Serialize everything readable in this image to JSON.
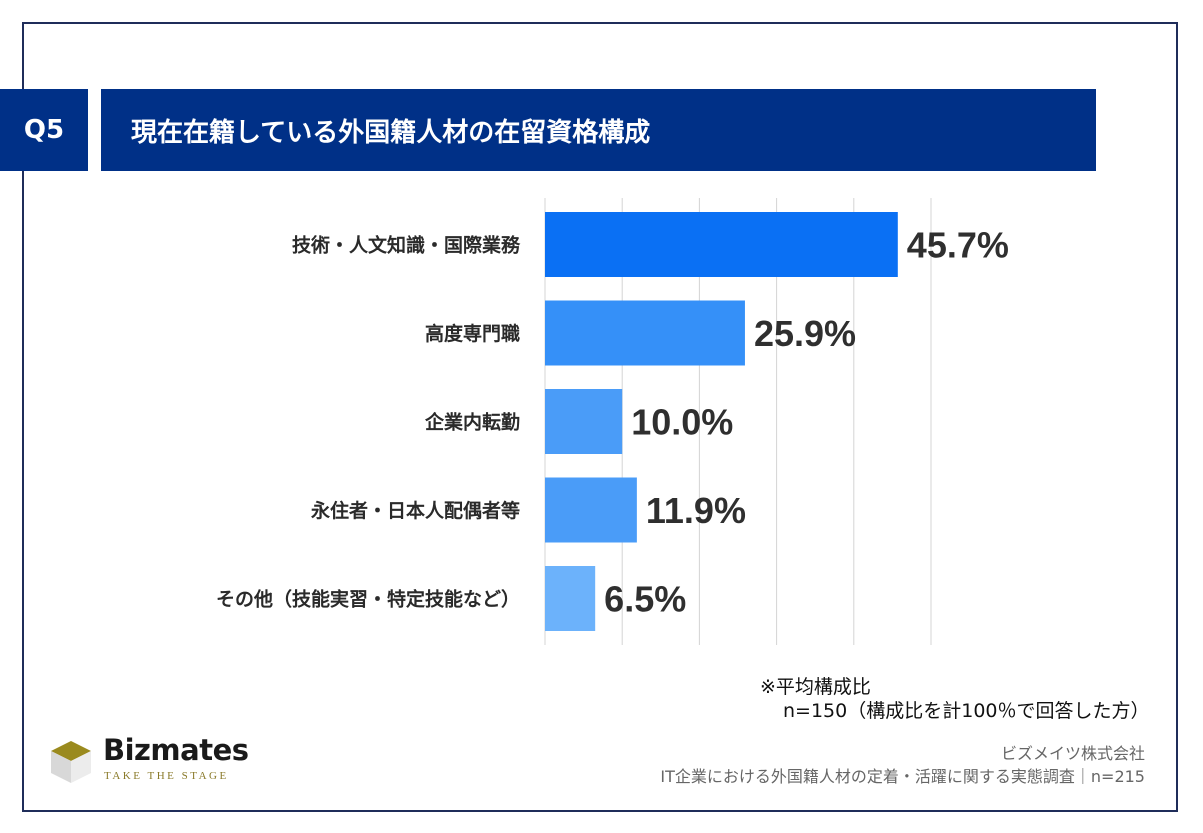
{
  "header": {
    "badge": "Q5",
    "title": "現在在籍している外国籍人材の在留資格構成"
  },
  "chart_data": {
    "type": "bar",
    "orientation": "horizontal",
    "categories": [
      "技術・人文知識・国際業務",
      "高度専門職",
      "企業内転勤",
      "永住者・日本人配偶者等",
      "その他（技能実習・特定技能など）"
    ],
    "values": [
      45.7,
      25.9,
      10.0,
      11.9,
      6.5
    ],
    "value_labels": [
      "45.7%",
      "25.9%",
      "10.0%",
      "11.9%",
      "6.5%"
    ],
    "xlim": [
      0,
      50
    ],
    "grid": true,
    "bar_colors": [
      "#0a70f4",
      "#3590f8",
      "#4a9cf8",
      "#4a9cf8",
      "#6cb2fb"
    ]
  },
  "notes": {
    "line1": "※平均構成比",
    "line2": "n=150（構成比を計100％で回答した方）"
  },
  "brand": {
    "name": "Bizmates",
    "tagline": "TAKE THE STAGE"
  },
  "source": {
    "company": "ビズメイツ株式会社",
    "survey": "IT企業における外国籍人材の定着・活躍に関する実態調査｜n=215"
  },
  "colors": {
    "header_bg": "#003087",
    "logo_gold": "#9a8a1e",
    "grid": "#d4d4d4"
  }
}
